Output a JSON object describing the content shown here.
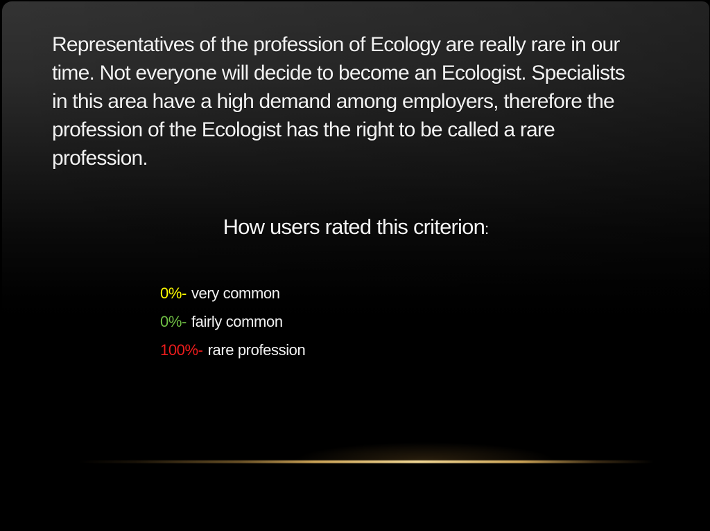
{
  "slide": {
    "paragraph_lines": [
      "Representatives of the profession of Ecology are really rare in our",
      "time. Not everyone will decide to become an Ecologist. Specialists",
      "in this area have a high demand among employers, therefore the",
      "profession of the Ecologist has the right to be called a rare",
      "profession."
    ],
    "heading": {
      "text": "How users rated this criterion",
      "colon": ":"
    },
    "ratings": [
      {
        "value": "0%-",
        "label": "very common",
        "color": "#fdfb00"
      },
      {
        "value": "0%-",
        "label": "fairly common",
        "color": "#6fbf44"
      },
      {
        "value": "100%-",
        "label": "rare profession",
        "color": "#ec1c1c"
      }
    ],
    "accent_line_color": "#d9b36a",
    "text_color": "#f2f2f2",
    "background_top_color": "#333333",
    "background_bottom_color": "#000000"
  }
}
